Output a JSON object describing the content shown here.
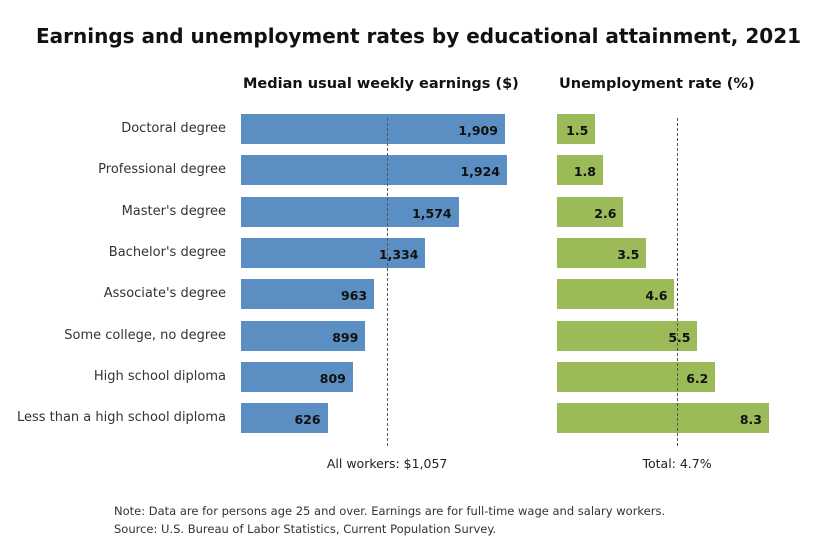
{
  "title": "Earnings and unemployment rates by educational attainment, 2021",
  "colors": {
    "earnings_bar": "#5b8ec2",
    "unemployment_bar": "#9bbb59",
    "reference_line": "#555555"
  },
  "chart_data": [
    {
      "type": "bar",
      "orientation": "horizontal",
      "title": "Median usual weekly earnings ($)",
      "categories": [
        "Doctoral degree",
        "Professional degree",
        "Master's degree",
        "Bachelor's degree",
        "Associate's degree",
        "Some college, no degree",
        "High school diploma",
        "Less than a high school diploma"
      ],
      "values": [
        1909,
        1924,
        1574,
        1334,
        963,
        899,
        809,
        626
      ],
      "value_labels": [
        "1,909",
        "1,924",
        "1,574",
        "1,334",
        "963",
        "899",
        "809",
        "626"
      ],
      "reference": {
        "value": 1057,
        "label": "All workers: $1,057"
      }
    },
    {
      "type": "bar",
      "orientation": "horizontal",
      "title": "Unemployment rate (%)",
      "categories": [
        "Doctoral degree",
        "Professional degree",
        "Master's degree",
        "Bachelor's degree",
        "Associate's degree",
        "Some college, no degree",
        "High school diploma",
        "Less than a high school diploma"
      ],
      "values": [
        1.5,
        1.8,
        2.6,
        3.5,
        4.6,
        5.5,
        6.2,
        8.3
      ],
      "value_labels": [
        "1.5",
        "1.8",
        "2.6",
        "3.5",
        "4.6",
        "5.5",
        "6.2",
        "8.3"
      ],
      "reference": {
        "value": 4.7,
        "label": "Total: 4.7%"
      }
    }
  ],
  "notes": {
    "line1": "Note: Data are for persons age 25 and over. Earnings are for full-time wage and salary workers.",
    "line2": "Source: U.S. Bureau of Labor Statistics, Current Population Survey."
  }
}
